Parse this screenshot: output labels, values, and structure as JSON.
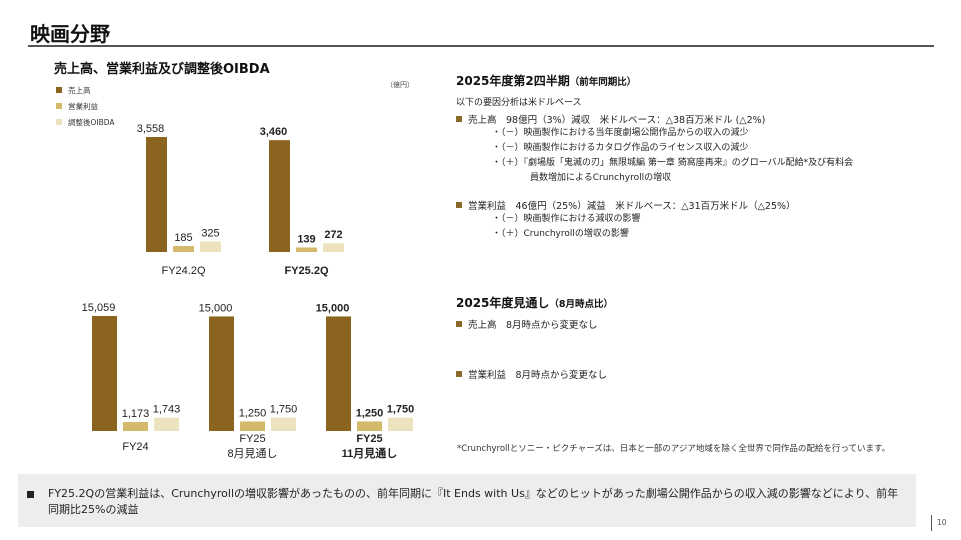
{
  "page": {
    "title": "映画分野",
    "page_number": "10"
  },
  "chart_section": {
    "title": "売上高、営業利益及び調整後OIBDA",
    "unit": "（億円）"
  },
  "legend": [
    {
      "label": "売上高",
      "color": "#8B6420"
    },
    {
      "label": "営業利益",
      "color": "#D4B96A"
    },
    {
      "label": "調整後OIBDA",
      "color": "#EDE2BE"
    }
  ],
  "chart_data": [
    {
      "type": "bar",
      "title": "売上高、営業利益及び調整後OIBDA（四半期）",
      "categories": [
        [
          "FY24.2Q"
        ],
        [
          "FY25.2Q"
        ]
      ],
      "bold_categories": [
        false,
        true
      ],
      "series": [
        {
          "name": "売上高",
          "values": [
            3558,
            3460
          ],
          "labels": [
            "3,558",
            "3,460"
          ],
          "color": "#8B6420"
        },
        {
          "name": "営業利益",
          "values": [
            185,
            139
          ],
          "labels": [
            "185",
            "139"
          ],
          "color": "#D4B96A"
        },
        {
          "name": "調整後OIBDA",
          "values": [
            325,
            272
          ],
          "labels": [
            "325",
            "272"
          ],
          "color": "#EDE2BE"
        }
      ],
      "ylim": [
        0,
        3900
      ]
    },
    {
      "type": "bar",
      "title": "売上高、営業利益及び調整後OIBDA（通期）",
      "categories": [
        [
          "FY24"
        ],
        [
          "FY25",
          "8月見通し"
        ],
        [
          "FY25",
          "11月見通し"
        ]
      ],
      "bold_categories": [
        false,
        false,
        true
      ],
      "series": [
        {
          "name": "売上高",
          "values": [
            15059,
            15000,
            15000
          ],
          "labels": [
            "15,059",
            "15,000",
            "15,000"
          ],
          "color": "#8B6420"
        },
        {
          "name": "営業利益",
          "values": [
            1173,
            1250,
            1250
          ],
          "labels": [
            "1,173",
            "1,250",
            "1,250"
          ],
          "color": "#D4B96A"
        },
        {
          "name": "調整後OIBDA",
          "values": [
            1743,
            1750,
            1750
          ],
          "labels": [
            "1,743",
            "1,750",
            "1,750"
          ],
          "color": "#EDE2BE"
        }
      ],
      "ylim": [
        0,
        16000
      ]
    }
  ],
  "quarter_analysis": {
    "heading": "2025年度第2四半期",
    "heading_note": "（前年同期比）",
    "intro": "以下の要因分析は米ドルベース",
    "sales": {
      "text": "売上高　98億円（3%）減収　米ドルベース：△38百万米ドル (△2%)",
      "factors": [
        "・（－）映画製作における当年度劇場公開作品からの収入の減少",
        "・（－）映画製作におけるカタログ作品のライセンス収入の減少",
        "・（＋）『劇場版「鬼滅の刃」無限城編 第一章 猗窩座再来』のグローバル配給*及び有料会"
      ],
      "factor_continuation": "員数増加によるCrunchyrollの増収"
    },
    "operating_income": {
      "text": "営業利益　46億円（25%）減益　米ドルベース：△31百万米ドル（△25%）",
      "factors": [
        "・（－）映画製作における減収の影響",
        "・（＋）Crunchyrollの増収の影響"
      ]
    }
  },
  "forecast": {
    "heading": "2025年度見通し",
    "heading_note": "（8月時点比）",
    "sales": "売上高　8月時点から変更なし",
    "operating_income": "営業利益　8月時点から変更なし"
  },
  "footnote": "*Crunchyrollとソニー・ピクチャーズは、日本と一部のアジア地域を除く全世界で同作品の配給を行っています。",
  "summary": "FY25.2Qの営業利益は、Crunchyrollの増収影響があったものの、前年同期に『It Ends with Us』などのヒットがあった劇場公開作品からの収入減の影響などにより、前年同期比25%の減益"
}
